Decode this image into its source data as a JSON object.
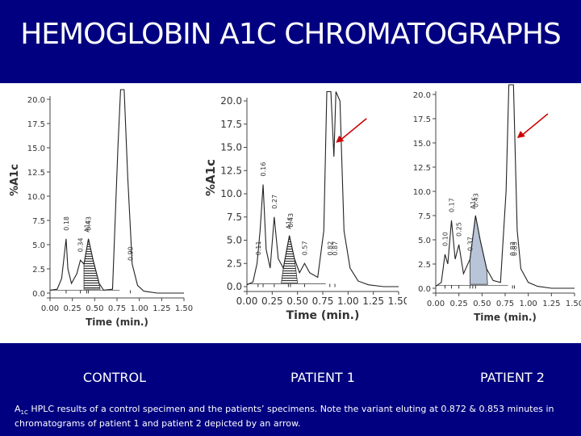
{
  "title": "HEMOGLOBIN A1C CHROMATOGRAPHS",
  "labels": {
    "control": "CONTROL",
    "patient1": "PATIENT 1",
    "patient2": "PATIENT 2"
  },
  "caption": {
    "prefix": "A",
    "prefix_sub": "1C",
    "text": "HPLC results of a control specimen and the patients’ specimens.  Note the variant eluting at 0.872 & 0.853 minutes in chromatograms of patient 1 and patient 2 depicted by an arrow."
  },
  "colors": {
    "background": "#000080",
    "arrow": "#cc0000",
    "trace": "#222222"
  },
  "chart_data": [
    {
      "type": "line",
      "name_label": "CONTROL",
      "xlabel": "Time (min.)",
      "ylabel": "%A1c",
      "xlim": [
        0,
        1.5
      ],
      "ylim": [
        0,
        20
      ],
      "xticks": [
        "0.00",
        "0.25",
        "0.50",
        "0.75",
        "1.00",
        "1.25",
        "1.50"
      ],
      "yticks": [
        "0.0",
        "2.5",
        "5.0",
        "7.5",
        "10.0",
        "12.5",
        "15.0",
        "17.5",
        "20.0"
      ],
      "peaks": [
        {
          "rt": 0.18,
          "label": "0.18"
        },
        {
          "rt": 0.34,
          "label": "0.34"
        },
        {
          "rt": 0.43,
          "label": "0.43"
        },
        {
          "rt": 0.41,
          "label": "A1c"
        },
        {
          "rt": 0.9,
          "label": "0.90"
        }
      ],
      "trace": [
        [
          0.0,
          0.3
        ],
        [
          0.08,
          0.4
        ],
        [
          0.13,
          1.5
        ],
        [
          0.18,
          5.6
        ],
        [
          0.2,
          2.5
        ],
        [
          0.24,
          1.0
        ],
        [
          0.3,
          2.0
        ],
        [
          0.34,
          3.4
        ],
        [
          0.38,
          3.0
        ],
        [
          0.43,
          5.6
        ],
        [
          0.48,
          3.5
        ],
        [
          0.55,
          1.0
        ],
        [
          0.6,
          0.3
        ],
        [
          0.7,
          0.4
        ],
        [
          0.76,
          15
        ],
        [
          0.79,
          21
        ],
        [
          0.83,
          21
        ],
        [
          0.87,
          12
        ],
        [
          0.92,
          3
        ],
        [
          0.98,
          0.8
        ],
        [
          1.05,
          0.2
        ],
        [
          1.2,
          0.0
        ],
        [
          1.5,
          0.0
        ]
      ],
      "shaded": [
        0.38,
        0.56
      ],
      "arrow": false
    },
    {
      "type": "line",
      "name_label": "PATIENT 1",
      "xlabel": "Time (min.)",
      "ylabel": "%A1c",
      "xlim": [
        0,
        1.5
      ],
      "ylim": [
        0,
        20
      ],
      "xticks": [
        "0.00",
        "0.25",
        "0.50",
        "0.75",
        "1.00",
        "1.25",
        "1.50"
      ],
      "yticks": [
        "0.0",
        "2.5",
        "5.0",
        "7.5",
        "10.0",
        "12.5",
        "15.0",
        "17.5",
        "20.0"
      ],
      "peaks": [
        {
          "rt": 0.11,
          "label": "0.11"
        },
        {
          "rt": 0.16,
          "label": "0.16"
        },
        {
          "rt": 0.27,
          "label": "0.27"
        },
        {
          "rt": 0.43,
          "label": "0.43"
        },
        {
          "rt": 0.41,
          "label": "A1c"
        },
        {
          "rt": 0.57,
          "label": "0.57"
        },
        {
          "rt": 0.82,
          "label": "0.82"
        },
        {
          "rt": 0.87,
          "label": "0.87"
        }
      ],
      "trace": [
        [
          0.0,
          0.2
        ],
        [
          0.06,
          0.5
        ],
        [
          0.1,
          2.5
        ],
        [
          0.13,
          6.0
        ],
        [
          0.16,
          11.0
        ],
        [
          0.19,
          4.0
        ],
        [
          0.23,
          2.0
        ],
        [
          0.27,
          7.5
        ],
        [
          0.31,
          3.0
        ],
        [
          0.36,
          2.0
        ],
        [
          0.42,
          5.5
        ],
        [
          0.47,
          3.0
        ],
        [
          0.52,
          1.5
        ],
        [
          0.57,
          2.5
        ],
        [
          0.62,
          1.5
        ],
        [
          0.7,
          1.0
        ],
        [
          0.76,
          6
        ],
        [
          0.79,
          21
        ],
        [
          0.83,
          21
        ],
        [
          0.86,
          14
        ],
        [
          0.88,
          21
        ],
        [
          0.92,
          20
        ],
        [
          0.96,
          6
        ],
        [
          1.02,
          2
        ],
        [
          1.1,
          0.6
        ],
        [
          1.2,
          0.2
        ],
        [
          1.35,
          0.0
        ],
        [
          1.5,
          0.0
        ]
      ],
      "shaded": [
        0.34,
        0.5
      ],
      "arrow": true
    },
    {
      "type": "line",
      "name_label": "PATIENT 2",
      "xlabel": "Time (min.)",
      "ylabel": "",
      "xlim": [
        0,
        1.5
      ],
      "ylim": [
        0,
        20
      ],
      "xticks": [
        "0.00",
        "0.25",
        "0.50",
        "0.75",
        "1.00",
        "1.25",
        "1.50"
      ],
      "yticks": [
        "0.0",
        "2.5",
        "5.0",
        "7.5",
        "10.0",
        "12.5",
        "15.0",
        "17.5",
        "20.0"
      ],
      "peaks": [
        {
          "rt": 0.1,
          "label": "0.10"
        },
        {
          "rt": 0.17,
          "label": "0.17"
        },
        {
          "rt": 0.25,
          "label": "0.25"
        },
        {
          "rt": 0.37,
          "label": "0.37"
        },
        {
          "rt": 0.43,
          "label": "0.43"
        },
        {
          "rt": 0.4,
          "label": "A1c"
        },
        {
          "rt": 0.85,
          "label": "0.85"
        },
        {
          "rt": 0.83,
          "label": "0.83"
        }
      ],
      "trace": [
        [
          0.0,
          0.2
        ],
        [
          0.06,
          0.6
        ],
        [
          0.1,
          3.5
        ],
        [
          0.13,
          2.5
        ],
        [
          0.17,
          7.0
        ],
        [
          0.21,
          3.0
        ],
        [
          0.25,
          4.5
        ],
        [
          0.3,
          1.5
        ],
        [
          0.37,
          3.0
        ],
        [
          0.43,
          7.5
        ],
        [
          0.48,
          5.0
        ],
        [
          0.55,
          2.0
        ],
        [
          0.62,
          0.8
        ],
        [
          0.7,
          0.6
        ],
        [
          0.76,
          10
        ],
        [
          0.79,
          21
        ],
        [
          0.84,
          21
        ],
        [
          0.88,
          6
        ],
        [
          0.92,
          2
        ],
        [
          1.0,
          0.6
        ],
        [
          1.1,
          0.2
        ],
        [
          1.25,
          0.0
        ],
        [
          1.5,
          0.0
        ]
      ],
      "shaded": [
        0.37,
        0.56
      ],
      "arrow": true
    }
  ]
}
